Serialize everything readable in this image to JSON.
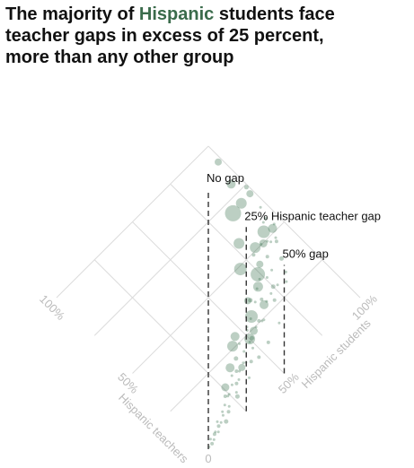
{
  "title": {
    "line1_pre": "The majority of ",
    "line1_accent": "Hispanic",
    "line1_post": " students face",
    "line2": "teacher gaps in excess of 25 percent,",
    "line3": "more than any other group"
  },
  "colors": {
    "accent": "#3a6b4b",
    "points": "#2f6a45",
    "grid": "#dcdcdc",
    "axis_label": "#bbbbbb",
    "text": "#111111"
  },
  "chart_data": {
    "type": "scatter",
    "x_axis": {
      "label": "Hispanic students",
      "range": [
        0,
        100
      ],
      "ticks": [
        {
          "value": 50,
          "label": "50%"
        },
        {
          "value": 100,
          "label": "100%"
        }
      ]
    },
    "y_axis": {
      "label": "Hispanic teachers",
      "range": [
        0,
        100
      ],
      "ticks": [
        {
          "value": 50,
          "label": "50%"
        },
        {
          "value": 100,
          "label": "100%"
        }
      ]
    },
    "origin_label": "0",
    "gap_lines": [
      {
        "gap": 0,
        "label": "No gap"
      },
      {
        "gap": 25,
        "label": "25% Hispanic teacher gap"
      },
      {
        "gap": 50,
        "label": "50% gap"
      }
    ],
    "points": [
      {
        "x": 1,
        "y": 0.5,
        "size": 3
      },
      {
        "x": 3,
        "y": 0.6,
        "size": 4
      },
      {
        "x": 5,
        "y": 1.3,
        "size": 3
      },
      {
        "x": 7,
        "y": 2.9,
        "size": 4
      },
      {
        "x": 9,
        "y": 2.4,
        "size": 3
      },
      {
        "x": 11,
        "y": 4.2,
        "size": 4
      },
      {
        "x": 13,
        "y": 4.6,
        "size": 3
      },
      {
        "x": 15,
        "y": 3.3,
        "size": 5
      },
      {
        "x": 17,
        "y": 7.7,
        "size": 3
      },
      {
        "x": 19,
        "y": 5.7,
        "size": 4
      },
      {
        "x": 21,
        "y": 7.3,
        "size": 3
      },
      {
        "x": 23,
        "y": 11.9,
        "size": 4
      },
      {
        "x": 25,
        "y": 11.3,
        "size": 3
      },
      {
        "x": 27,
        "y": 7.8,
        "size": 5
      },
      {
        "x": 29,
        "y": 13.4,
        "size": 3
      },
      {
        "x": 31,
        "y": 12.4,
        "size": 4
      },
      {
        "x": 33,
        "y": 12.9,
        "size": 3
      },
      {
        "x": 35,
        "y": 16.5,
        "size": 4
      },
      {
        "x": 37,
        "y": 10.1,
        "size": 3
      },
      {
        "x": 39,
        "y": 20.8,
        "size": 5
      },
      {
        "x": 41,
        "y": 16.2,
        "size": 3
      },
      {
        "x": 43,
        "y": 14.8,
        "size": 4
      },
      {
        "x": 45,
        "y": 24.6,
        "size": 3
      },
      {
        "x": 47,
        "y": 13.7,
        "size": 4
      },
      {
        "x": 49,
        "y": 21.7,
        "size": 3
      },
      {
        "x": 51,
        "y": 22.3,
        "size": 5
      },
      {
        "x": 53,
        "y": 27.6,
        "size": 3
      },
      {
        "x": 55,
        "y": 15.5,
        "size": 4
      },
      {
        "x": 57,
        "y": 29.1,
        "size": 3
      },
      {
        "x": 59,
        "y": 25.7,
        "size": 4
      },
      {
        "x": 61,
        "y": 24.4,
        "size": 3
      },
      {
        "x": 63,
        "y": 35.3,
        "size": 5
      },
      {
        "x": 65,
        "y": 18.3,
        "size": 3
      },
      {
        "x": 67,
        "y": 31.9,
        "size": 4
      },
      {
        "x": 69,
        "y": 36.9,
        "size": 3
      },
      {
        "x": 71,
        "y": 27.4,
        "size": 4
      },
      {
        "x": 73,
        "y": 39.2,
        "size": 3
      },
      {
        "x": 75,
        "y": 32.3,
        "size": 5
      },
      {
        "x": 77,
        "y": 31.4,
        "size": 3
      },
      {
        "x": 79,
        "y": 49.2,
        "size": 4
      },
      {
        "x": 81,
        "y": 29.6,
        "size": 3
      },
      {
        "x": 83,
        "y": 44.1,
        "size": 4
      },
      {
        "x": 85,
        "y": 50.2,
        "size": 3
      },
      {
        "x": 87,
        "y": 38.8,
        "size": 5
      },
      {
        "x": 89,
        "y": 47.8,
        "size": 3
      },
      {
        "x": 91,
        "y": 46.1,
        "size": 4
      },
      {
        "x": 93,
        "y": 56.7,
        "size": 3
      },
      {
        "x": 95,
        "y": 57.2,
        "size": 4
      },
      {
        "x": 97,
        "y": 62.6,
        "size": 3
      },
      {
        "x": 99,
        "y": 73.9,
        "size": 5
      },
      {
        "x": 4,
        "y": 2.6,
        "size": 3
      },
      {
        "x": 8,
        "y": 3.4,
        "size": 3
      },
      {
        "x": 12,
        "y": 6.1,
        "size": 3
      },
      {
        "x": 16,
        "y": 6.3,
        "size": 3
      },
      {
        "x": 20,
        "y": 9.2,
        "size": 3
      },
      {
        "x": 24,
        "y": 11.1,
        "size": 3
      },
      {
        "x": 28,
        "y": 9.5,
        "size": 3
      },
      {
        "x": 32,
        "y": 16.5,
        "size": 3
      },
      {
        "x": 36,
        "y": 15.5,
        "size": 3
      },
      {
        "x": 40,
        "y": 17.0,
        "size": 3
      },
      {
        "x": 44,
        "y": 20.5,
        "size": 3
      },
      {
        "x": 48,
        "y": 18.7,
        "size": 3
      },
      {
        "x": 52,
        "y": 26.4,
        "size": 3
      },
      {
        "x": 56,
        "y": 24.6,
        "size": 3
      },
      {
        "x": 60,
        "y": 24.6,
        "size": 3
      },
      {
        "x": 64,
        "y": 33.1,
        "size": 3
      },
      {
        "x": 68,
        "y": 29.6,
        "size": 3
      },
      {
        "x": 72,
        "y": 30.7,
        "size": 3
      },
      {
        "x": 76,
        "y": 37.3,
        "size": 3
      },
      {
        "x": 80,
        "y": 38.2,
        "size": 3
      },
      {
        "x": 84,
        "y": 32.9,
        "size": 3
      },
      {
        "x": 88,
        "y": 49.2,
        "size": 3
      },
      {
        "x": 92,
        "y": 47.6,
        "size": 3
      },
      {
        "x": 96,
        "y": 52.6,
        "size": 3
      },
      {
        "x": 26,
        "y": 14.8,
        "size": 9
      },
      {
        "x": 38,
        "y": 15.9,
        "size": 8
      },
      {
        "x": 46,
        "y": 28.4,
        "size": 10
      },
      {
        "x": 54,
        "y": 24.1,
        "size": 9
      },
      {
        "x": 62,
        "y": 36.0,
        "size": 8
      },
      {
        "x": 70,
        "y": 37.2,
        "size": 11
      },
      {
        "x": 78,
        "y": 44.1,
        "size": 8
      },
      {
        "x": 86,
        "y": 49.8,
        "size": 9
      },
      {
        "x": 94,
        "y": 51.7,
        "size": 10
      },
      {
        "x": 98,
        "y": 70.6,
        "size": 8
      },
      {
        "x": 42,
        "y": 26.0,
        "size": 12
      },
      {
        "x": 66,
        "y": 29.3,
        "size": 10
      },
      {
        "x": 58,
        "y": 29.6,
        "size": 14
      },
      {
        "x": 82,
        "y": 51.1,
        "size": 12
      },
      {
        "x": 74,
        "y": 41.4,
        "size": 16
      },
      {
        "x": 90,
        "y": 53.5,
        "size": 14
      },
      {
        "x": 50,
        "y": 22.7,
        "size": 12
      },
      {
        "x": 34,
        "y": 19.7,
        "size": 10
      },
      {
        "x": 86,
        "y": 69.7,
        "size": 18
      },
      {
        "x": 70,
        "y": 48.9,
        "size": 14
      },
      {
        "x": 78,
        "y": 57.8,
        "size": 12
      },
      {
        "x": 95,
        "y": 80.0,
        "size": 10
      },
      {
        "x": 92,
        "y": 70.3,
        "size": 12
      },
      {
        "x": 98,
        "y": 91.5,
        "size": 8
      }
    ]
  }
}
